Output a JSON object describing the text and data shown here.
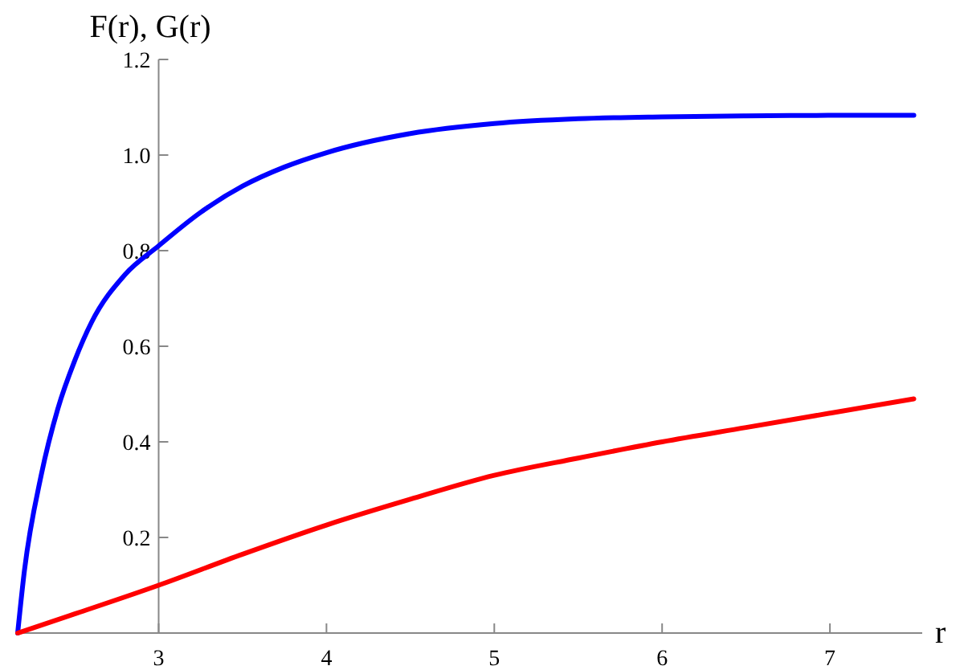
{
  "chart_data": {
    "type": "line",
    "xlabel": "r",
    "ylabel": "F(r), G(r)",
    "xlim": [
      2.16,
      7.55
    ],
    "ylim": [
      0,
      1.2
    ],
    "xticks": [
      3,
      4,
      5,
      6,
      7
    ],
    "yticks": [
      0.2,
      0.4,
      0.6,
      0.8,
      {
        "value": 1,
        "label": "1.0"
      },
      1.2
    ],
    "grid": false,
    "marker": "none",
    "line_style": "solid",
    "series": [
      {
        "color": "#0000ff",
        "x": [
          2.16,
          2.2,
          2.3,
          2.4,
          2.5,
          2.6,
          2.8,
          3,
          3.25,
          3.5,
          3.75,
          4,
          4.5,
          5,
          5.5,
          6,
          6.5,
          7,
          7.5
        ],
        "values": [
          0,
          0.13,
          0.33,
          0.47,
          0.57,
          0.65,
          0.75,
          0.81,
          0.88,
          0.935,
          0.975,
          1.005,
          1.045,
          1.066,
          1.076,
          1.08,
          1.082,
          1.083,
          1.083
        ]
      },
      {
        "color": "#ff0000",
        "x": [
          2.16,
          2.5,
          3,
          3.5,
          4,
          4.5,
          5,
          5.5,
          6,
          6.5,
          7,
          7.5
        ],
        "values": [
          0,
          0.04,
          0.1,
          0.165,
          0.226,
          0.28,
          0.33,
          0.366,
          0.4,
          0.43,
          0.46,
          0.49
        ]
      }
    ]
  }
}
